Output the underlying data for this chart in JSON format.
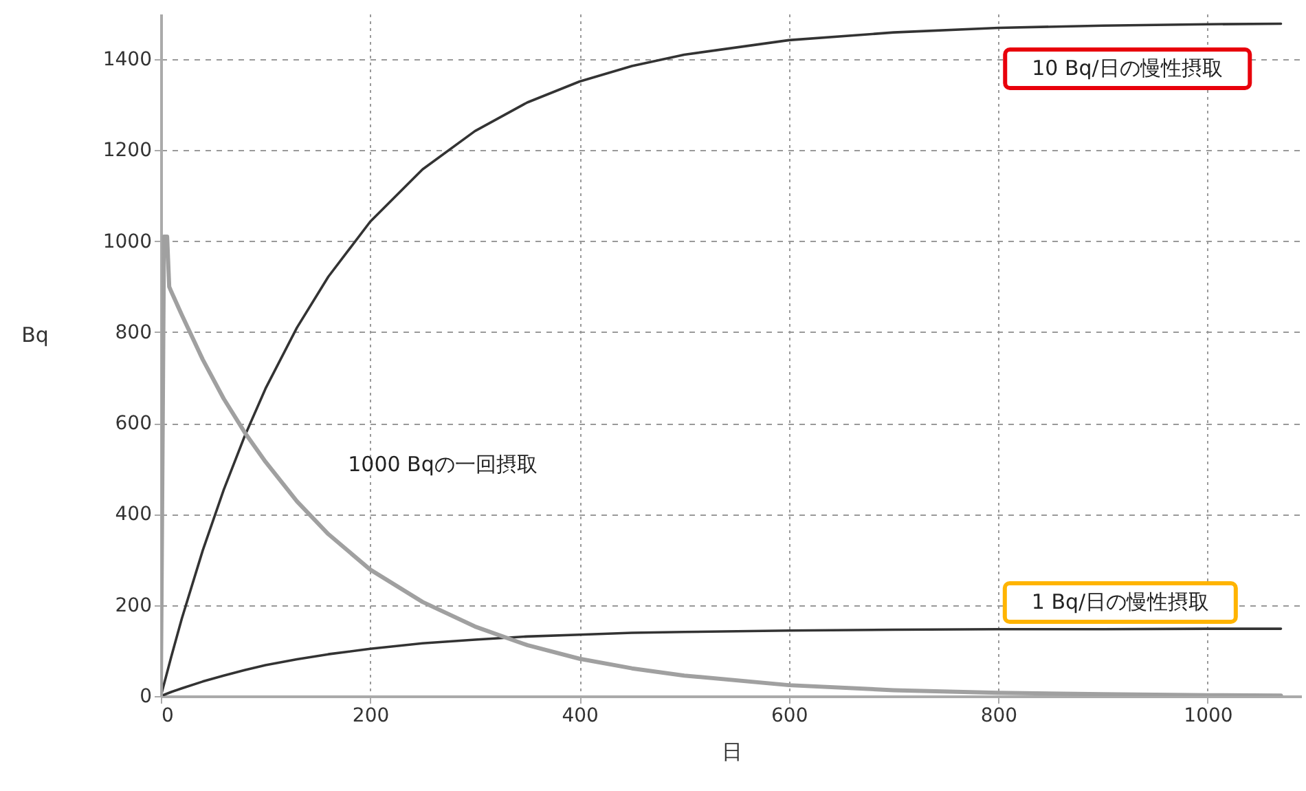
{
  "chart_data": {
    "type": "line",
    "xlabel": "日",
    "ylabel": "Bq",
    "xlim": [
      0,
      1090
    ],
    "ylim": [
      0,
      1500
    ],
    "xticks": [
      0,
      200,
      400,
      600,
      800,
      1000
    ],
    "yticks": [
      0,
      200,
      400,
      600,
      800,
      1000,
      1200,
      1400
    ],
    "grid": true,
    "line_style": "solid",
    "series": [
      {
        "name": "10 Bq/日の慢性摂取",
        "color": "#333333",
        "x": [
          0,
          10,
          20,
          40,
          60,
          80,
          100,
          130,
          160,
          200,
          250,
          300,
          350,
          400,
          450,
          500,
          600,
          700,
          800,
          900,
          1000,
          1070
        ],
        "values": [
          0,
          87,
          170,
          320,
          453,
          571,
          676,
          810,
          922,
          1043,
          1158,
          1242,
          1305,
          1351,
          1385,
          1410,
          1442,
          1459,
          1469,
          1474,
          1477,
          1478
        ]
      },
      {
        "name": "1 Bq/日の慢性摂取",
        "color": "#333333",
        "x": [
          0,
          10,
          20,
          40,
          60,
          80,
          100,
          130,
          160,
          200,
          250,
          300,
          350,
          400,
          450,
          500,
          600,
          700,
          800,
          900,
          1000,
          1070
        ],
        "values": [
          0,
          9,
          17,
          32,
          45,
          57,
          68,
          81,
          92,
          104,
          116,
          124,
          131,
          135,
          139,
          141,
          144,
          146,
          147,
          147,
          148,
          148
        ]
      },
      {
        "name": "1000 Bqの一回摂取",
        "color": "#a0a0a0",
        "x": [
          0,
          3,
          6,
          8,
          10,
          20,
          40,
          60,
          80,
          100,
          130,
          160,
          200,
          250,
          300,
          350,
          400,
          450,
          500,
          600,
          700,
          800,
          900,
          1000,
          1070
        ],
        "values": [
          0,
          1010,
          1010,
          900,
          889,
          838,
          740,
          654,
          580,
          515,
          428,
          356,
          278,
          207,
          153,
          112,
          82,
          61,
          45,
          24,
          13,
          7,
          4,
          2,
          1
        ]
      }
    ]
  }
}
